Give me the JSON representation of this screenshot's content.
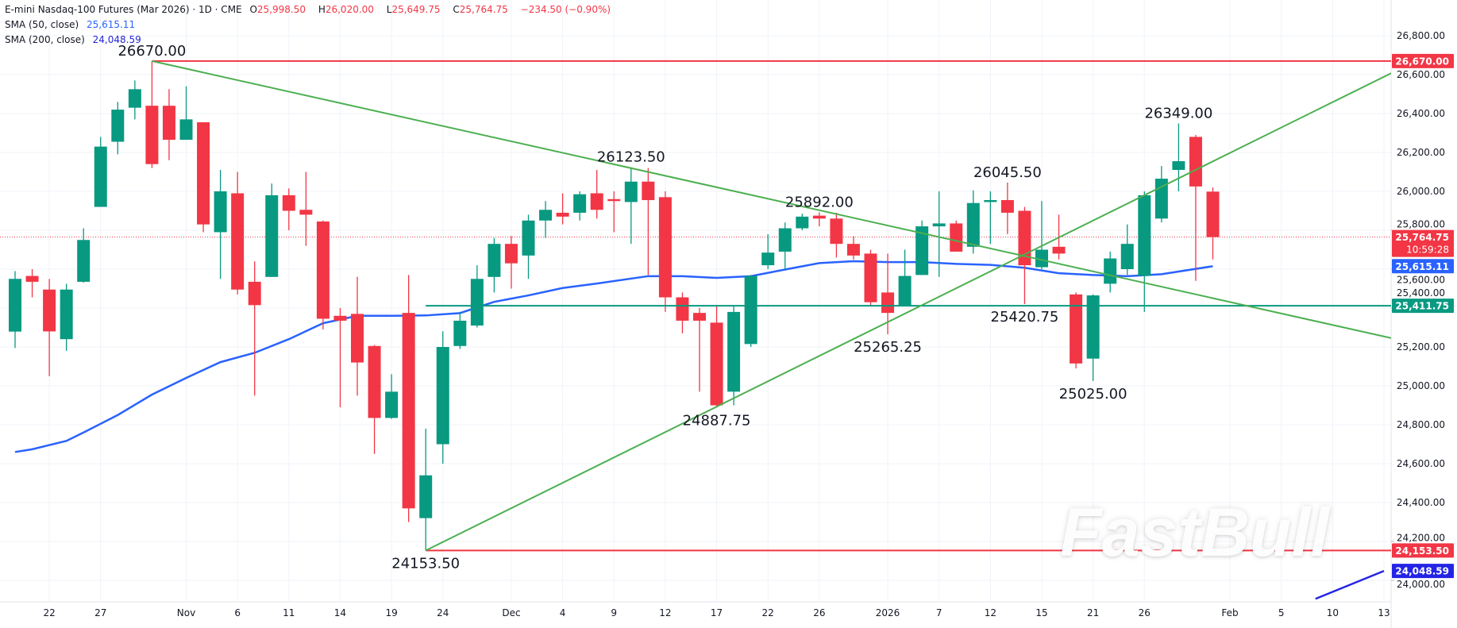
{
  "header": {
    "title": "E-mini Nasdaq-100 Futures (Mar 2026) · 1D · CME",
    "o_label": "O",
    "o_value": "25,998.50",
    "h_label": "H",
    "h_value": "26,020.00",
    "l_label": "L",
    "l_value": "25,649.75",
    "c_label": "C",
    "c_value": "25,764.75",
    "change": "−234.50 (−0.90%)",
    "sma50_label": "SMA (50, close)",
    "sma50_value": "25,615.11",
    "sma200_label": "SMA (200, close)",
    "sma200_value": "24,048.59"
  },
  "watermark": "FastBull",
  "colors": {
    "up": "#089981",
    "down": "#f23645",
    "sma50": "#2962ff",
    "sma200": "#2424e6",
    "trendline": "#4caf50",
    "resistance": "#f23645",
    "support_green": "#089981",
    "grid": "#f0f3fa"
  },
  "chart_data": {
    "type": "candlestick",
    "ylim": [
      23900,
      26950
    ],
    "grid": true,
    "y_ticks": [
      "24,000.00",
      "24,200.00",
      "24,400.00",
      "24,600.00",
      "24,800.00",
      "25,000.00",
      "25,200.00",
      "25,400.00",
      "25,600.00",
      "25,800.00",
      "26,000.00",
      "26,200.00",
      "26,400.00",
      "26,600.00",
      "26,800.00"
    ],
    "y_tick_values": [
      24000,
      24200,
      24400,
      24600,
      24800,
      25000,
      25200,
      25400,
      25600,
      25800,
      26000,
      26200,
      26400,
      26600,
      26800
    ],
    "x_ticks": [
      {
        "label": "22",
        "date": "2025-10-22"
      },
      {
        "label": "27",
        "date": "2025-10-27"
      },
      {
        "label": "Nov",
        "date": "2025-11-03"
      },
      {
        "label": "6",
        "date": "2025-11-06"
      },
      {
        "label": "11",
        "date": "2025-11-11"
      },
      {
        "label": "14",
        "date": "2025-11-14"
      },
      {
        "label": "19",
        "date": "2025-11-19"
      },
      {
        "label": "24",
        "date": "2025-11-24"
      },
      {
        "label": "Dec",
        "date": "2025-12-01"
      },
      {
        "label": "4",
        "date": "2025-12-04"
      },
      {
        "label": "9",
        "date": "2025-12-09"
      },
      {
        "label": "12",
        "date": "2025-12-12"
      },
      {
        "label": "17",
        "date": "2025-12-17"
      },
      {
        "label": "22",
        "date": "2025-12-22"
      },
      {
        "label": "26",
        "date": "2025-12-26"
      },
      {
        "label": "2026",
        "date": "2026-01-02"
      },
      {
        "label": "7",
        "date": "2026-01-07"
      },
      {
        "label": "12",
        "date": "2026-01-12"
      },
      {
        "label": "15",
        "date": "2026-01-15"
      },
      {
        "label": "21",
        "date": "2026-01-21"
      },
      {
        "label": "26",
        "date": "2026-01-26"
      },
      {
        "label": "Feb",
        "date": "2026-02-02"
      },
      {
        "label": "5",
        "date": "2026-02-05"
      },
      {
        "label": "10",
        "date": "2026-02-10"
      },
      {
        "label": "13",
        "date": "2026-02-13"
      }
    ],
    "candle_fields": [
      "date",
      "open",
      "high",
      "low",
      "close"
    ],
    "candles": [
      [
        "2025-10-20",
        25279,
        25590,
        25195,
        25550
      ],
      [
        "2025-10-21",
        25565,
        25600,
        25455,
        25535
      ],
      [
        "2025-10-22",
        25495,
        25550,
        25050,
        25280
      ],
      [
        "2025-10-23",
        25240,
        25525,
        25180,
        25495
      ],
      [
        "2025-10-24",
        25535,
        25810,
        25530,
        25750
      ],
      [
        "2025-10-27",
        25920,
        26280,
        25920,
        26230
      ],
      [
        "2025-10-28",
        26255,
        26460,
        26190,
        26420
      ],
      [
        "2025-10-29",
        26430,
        26570,
        26370,
        26525
      ],
      [
        "2025-10-30",
        26440,
        26670,
        26120,
        26140
      ],
      [
        "2025-10-31",
        26440,
        26525,
        26160,
        26265
      ],
      [
        "2025-11-03",
        26265,
        26540,
        26265,
        26370
      ],
      [
        "2025-11-04",
        26355,
        26355,
        25790,
        25830
      ],
      [
        "2025-11-05",
        25790,
        26110,
        25550,
        26000
      ],
      [
        "2025-11-06",
        25990,
        26100,
        25470,
        25495
      ],
      [
        "2025-11-07",
        25535,
        25640,
        24950,
        25415
      ],
      [
        "2025-11-10",
        25560,
        26040,
        25560,
        25980
      ],
      [
        "2025-11-11",
        25980,
        26015,
        25800,
        25900
      ],
      [
        "2025-11-12",
        25905,
        26100,
        25720,
        25880
      ],
      [
        "2025-11-13",
        25845,
        25850,
        25290,
        25345
      ],
      [
        "2025-11-14",
        25360,
        25400,
        24890,
        25335
      ],
      [
        "2025-11-17",
        25370,
        25560,
        24950,
        25120
      ],
      [
        "2025-11-18",
        25205,
        25210,
        24650,
        24835
      ],
      [
        "2025-11-19",
        24835,
        25060,
        24830,
        24970
      ],
      [
        "2025-11-20",
        25375,
        25570,
        24300,
        24370
      ],
      [
        "2025-11-21",
        24320,
        24780,
        24153.5,
        24540
      ],
      [
        "2025-11-24",
        24700,
        25280,
        24600,
        25200
      ],
      [
        "2025-11-25",
        25205,
        25380,
        25190,
        25335
      ],
      [
        "2025-11-26",
        25310,
        25620,
        25300,
        25550
      ],
      [
        "2025-11-28",
        25560,
        25760,
        25480,
        25730
      ],
      [
        "2025-12-01",
        25730,
        25770,
        25500,
        25630
      ],
      [
        "2025-12-02",
        25670,
        25880,
        25550,
        25850
      ],
      [
        "2025-12-03",
        25850,
        25950,
        25760,
        25905
      ],
      [
        "2025-12-04",
        25890,
        25990,
        25830,
        25870
      ],
      [
        "2025-12-05",
        25890,
        26000,
        25850,
        25985
      ],
      [
        "2025-12-08",
        25990,
        26110,
        25860,
        25905
      ],
      [
        "2025-12-09",
        25960,
        26000,
        25790,
        25950
      ],
      [
        "2025-12-10",
        25945,
        26123.5,
        25730,
        26050
      ],
      [
        "2025-12-11",
        26050,
        26120,
        25570,
        25955
      ],
      [
        "2025-12-12",
        25970,
        26000,
        25380,
        25455
      ],
      [
        "2025-12-15",
        25455,
        25480,
        25270,
        25335
      ],
      [
        "2025-12-16",
        25375,
        25400,
        24970,
        25335
      ],
      [
        "2025-12-17",
        25325,
        25410,
        24887.75,
        24900
      ],
      [
        "2025-12-18",
        24970,
        25410,
        24900,
        25380
      ],
      [
        "2025-12-19",
        25215,
        25570,
        25200,
        25565
      ],
      [
        "2025-12-22",
        25620,
        25780,
        25600,
        25685
      ],
      [
        "2025-12-23",
        25690,
        25840,
        25600,
        25810
      ],
      [
        "2025-12-24",
        25810,
        25885,
        25800,
        25870
      ],
      [
        "2025-12-26",
        25875,
        25892,
        25820,
        25860
      ],
      [
        "2025-12-29",
        25860,
        25890,
        25660,
        25730
      ],
      [
        "2025-12-30",
        25730,
        25770,
        25650,
        25670
      ],
      [
        "2025-12-31",
        25680,
        25700,
        25410,
        25430
      ],
      [
        "2026-01-02",
        25480,
        25680,
        25265.25,
        25375
      ],
      [
        "2026-01-05",
        25415,
        25700,
        25410,
        25565
      ],
      [
        "2026-01-06",
        25570,
        25850,
        25570,
        25820
      ],
      [
        "2026-01-07",
        25820,
        26000,
        25560,
        25835
      ],
      [
        "2026-01-08",
        25835,
        25850,
        25690,
        25690
      ],
      [
        "2026-01-09",
        25715,
        26005,
        25680,
        25940
      ],
      [
        "2026-01-12",
        25945,
        26000,
        25730,
        25955
      ],
      [
        "2026-01-13",
        25955,
        26045.5,
        25780,
        25890
      ],
      [
        "2026-01-14",
        25900,
        25920,
        25420.75,
        25620
      ],
      [
        "2026-01-15",
        25610,
        25950,
        25600,
        25700
      ],
      [
        "2026-01-16",
        25715,
        25880,
        25650,
        25680
      ],
      [
        "2026-01-20",
        25470,
        25480,
        25090,
        25115
      ],
      [
        "2026-01-21",
        25140,
        25470,
        25025,
        25465
      ],
      [
        "2026-01-22",
        25525,
        25690,
        25480,
        25655
      ],
      [
        "2026-01-23",
        25600,
        25830,
        25570,
        25730
      ],
      [
        "2026-01-26",
        25565,
        26000,
        25380,
        25980
      ],
      [
        "2026-01-27",
        25860,
        26130,
        25840,
        26065
      ],
      [
        "2026-01-28",
        26110,
        26349,
        26000,
        26155
      ],
      [
        "2026-01-29",
        26280,
        26290,
        25540,
        26025
      ],
      [
        "2026-01-30",
        25998.5,
        26020,
        25649.75,
        25764.75
      ]
    ],
    "sma50": [
      [
        "2025-10-20",
        24660
      ],
      [
        "2025-10-21",
        24674
      ],
      [
        "2025-10-23",
        24717
      ],
      [
        "2025-10-24",
        24760
      ],
      [
        "2025-10-28",
        24850
      ],
      [
        "2025-10-30",
        24955
      ],
      [
        "2025-11-03",
        25041
      ],
      [
        "2025-11-05",
        25122
      ],
      [
        "2025-11-07",
        25170
      ],
      [
        "2025-11-11",
        25240
      ],
      [
        "2025-11-13",
        25322
      ],
      [
        "2025-11-17",
        25360
      ],
      [
        "2025-11-19",
        25360
      ],
      [
        "2025-11-21",
        25362
      ],
      [
        "2025-11-25",
        25374
      ],
      [
        "2025-11-28",
        25432
      ],
      [
        "2025-12-02",
        25465
      ],
      [
        "2025-12-04",
        25503
      ],
      [
        "2025-12-08",
        25526
      ],
      [
        "2025-12-11",
        25564
      ],
      [
        "2025-12-15",
        25564
      ],
      [
        "2025-12-17",
        25555
      ],
      [
        "2025-12-19",
        25564
      ],
      [
        "2025-12-23",
        25598
      ],
      [
        "2025-12-26",
        25631
      ],
      [
        "2025-12-30",
        25641
      ],
      [
        "2026-01-02",
        25636
      ],
      [
        "2026-01-06",
        25636
      ],
      [
        "2026-01-08",
        25627
      ],
      [
        "2026-01-12",
        25622
      ],
      [
        "2026-01-14",
        25607
      ],
      [
        "2026-01-16",
        25579
      ],
      [
        "2026-01-21",
        25570
      ],
      [
        "2026-01-23",
        25564
      ],
      [
        "2026-01-27",
        25574
      ],
      [
        "2026-01-30",
        25615.11
      ]
    ],
    "sma200": [
      [
        "2026-02-09",
        23905
      ],
      [
        "2026-02-13",
        24048.59
      ]
    ],
    "lines": [
      {
        "kind": "horizontal",
        "price": 26670,
        "from": "2025-10-30",
        "color": "#f23645"
      },
      {
        "kind": "horizontal",
        "price": 24153.5,
        "from": "2025-11-21",
        "color": "#f23645"
      },
      {
        "kind": "horizontal",
        "price": 25411.75,
        "from": "2025-11-21",
        "color": "#089981"
      },
      {
        "kind": "trend",
        "p1": [
          "2025-10-30",
          26670
        ],
        "p2": [
          "2026-02-13",
          25254
        ],
        "color": "#4caf50"
      },
      {
        "kind": "trend",
        "p1": [
          "2025-11-21",
          24153.5
        ],
        "p2": [
          "2026-02-13",
          26589
        ],
        "color": "#4caf50"
      }
    ],
    "annotations": [
      {
        "text": "26670.00",
        "date": "2025-10-30",
        "price": 26670,
        "side": "above"
      },
      {
        "text": "24153.50",
        "date": "2025-11-21",
        "price": 24153.5,
        "side": "below"
      },
      {
        "text": "26123.50",
        "date": "2025-12-10",
        "price": 26123.5,
        "side": "above"
      },
      {
        "text": "24887.75",
        "date": "2025-12-17",
        "price": 24887.75,
        "side": "below"
      },
      {
        "text": "25892.00",
        "date": "2025-12-26",
        "price": 25892,
        "side": "above"
      },
      {
        "text": "25265.25",
        "date": "2026-01-02",
        "price": 25265.25,
        "side": "below"
      },
      {
        "text": "26045.50",
        "date": "2026-01-13",
        "price": 26045.5,
        "side": "above"
      },
      {
        "text": "25420.75",
        "date": "2026-01-14",
        "price": 25420.75,
        "side": "below"
      },
      {
        "text": "25025.00",
        "date": "2026-01-21",
        "price": 25025,
        "side": "below"
      },
      {
        "text": "26349.00",
        "date": "2026-01-28",
        "price": 26349,
        "side": "above"
      }
    ],
    "last_price_line": 25764.75,
    "price_tags": [
      {
        "text": "26,670.00",
        "price": 26670,
        "color": "#f23645"
      },
      {
        "text": "25,764.75",
        "sub": "10:59:28",
        "price": 25764.75,
        "color": "#f23645"
      },
      {
        "text": "25,615.11",
        "price": 25615.11,
        "color": "#2962ff"
      },
      {
        "text": "25,411.75",
        "price": 25411.75,
        "color": "#089981"
      },
      {
        "text": "24,153.50",
        "price": 24153.5,
        "color": "#f23645"
      },
      {
        "text": "24,048.59",
        "price": 24048.59,
        "color": "#2424e6"
      }
    ]
  }
}
